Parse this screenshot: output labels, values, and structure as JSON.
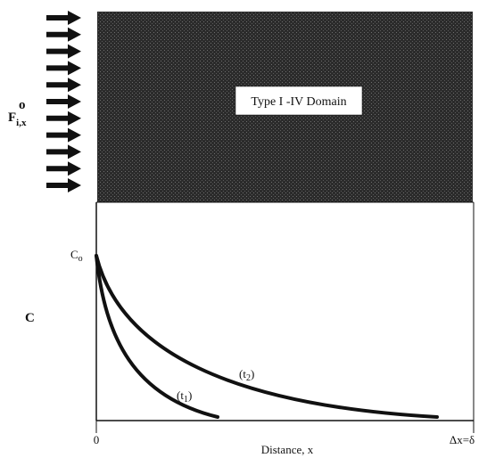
{
  "flux_label": {
    "main": "F",
    "sup": "o",
    "sub": "i,x"
  },
  "domain_label": "Type I -IV Domain",
  "c_axis_label": "C",
  "c0_label": {
    "main": "C",
    "sub": "o"
  },
  "curve_labels": [
    {
      "text": "(t",
      "sub": "1",
      "close": ")"
    },
    {
      "text": "(t",
      "sub": "2",
      "close": ")"
    }
  ],
  "x_axis": {
    "origin_label": "0",
    "end_label": "Δx=δ",
    "title": "Distance, x"
  },
  "colors": {
    "domain_fill": "#8c8c8c",
    "curve": "#111111",
    "arrow": "#111111"
  },
  "arrow_count": 11
}
